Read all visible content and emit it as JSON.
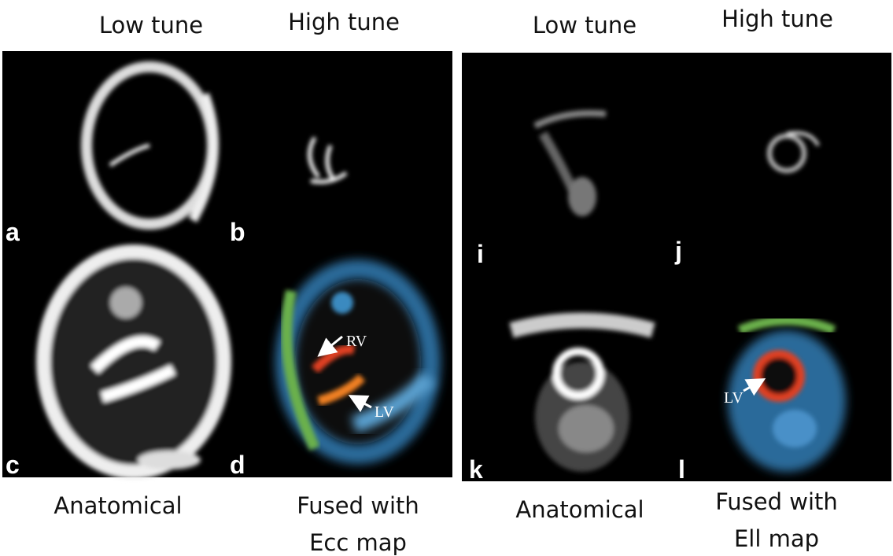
{
  "panels": [
    {
      "columns": [
        "Low tune",
        "High tune"
      ],
      "labels": [
        "a",
        "b",
        "c",
        "d"
      ],
      "annotations": [
        "RV",
        "LV"
      ],
      "captions": [
        [
          "Anatomical"
        ],
        [
          "Fused with",
          "Ecc map"
        ]
      ]
    },
    {
      "columns": [
        "Low tune",
        "High tune"
      ],
      "labels": [
        "i",
        "j",
        "k",
        "l"
      ],
      "annotations": [
        "LV"
      ],
      "captions": [
        [
          "Anatomical"
        ],
        [
          "Fused with",
          "Ell map"
        ]
      ]
    }
  ]
}
